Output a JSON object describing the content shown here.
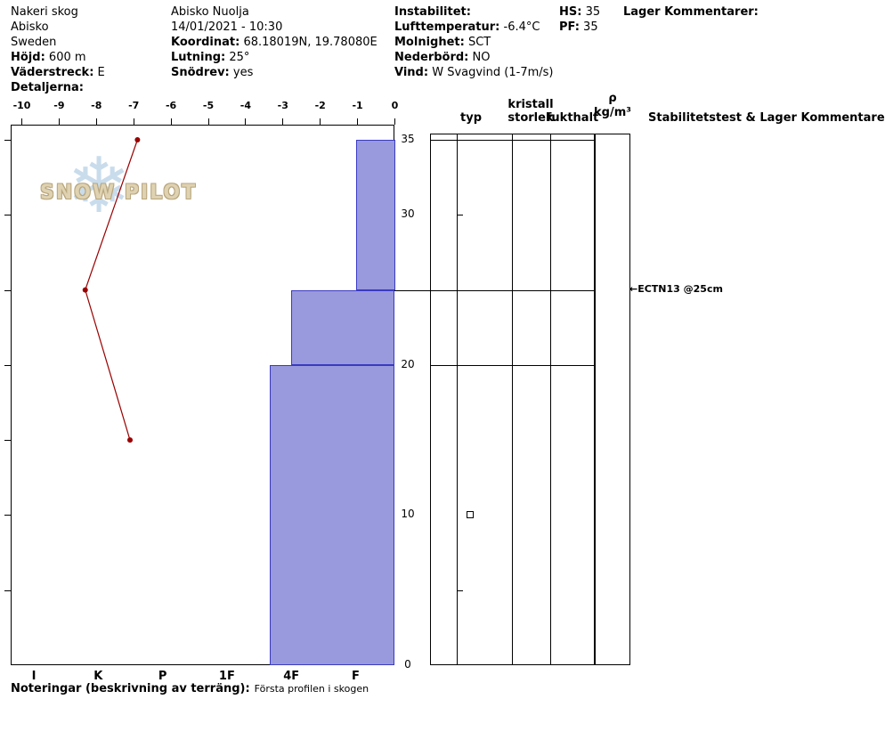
{
  "header": {
    "location": {
      "name": "Nakeri skog",
      "region": "Abisko",
      "country": "Sweden",
      "elevation_label": "Höjd:",
      "elevation_value": "600 m",
      "aspect_label": "Väderstreck:",
      "aspect_value": "E",
      "details_label": "Detaljerna:"
    },
    "site": {
      "name": "Abisko Nuolja",
      "datetime": "14/01/2021 - 10:30",
      "coord_label": "Koordinat:",
      "coord_value": "68.18019N, 19.78080E",
      "slope_label": "Lutning:",
      "slope_value": "25°",
      "snowdrift_label": "Snödrev:",
      "snowdrift_value": "yes"
    },
    "weather": {
      "instability_label": "Instabilitet:",
      "airtemp_label": "Lufttemperatur:",
      "airtemp_value": "-6.4°C",
      "sky_label": "Molnighet:",
      "sky_value": "SCT",
      "precip_label": "Nederbörd:",
      "precip_value": "NO",
      "wind_label": "Vind:",
      "wind_value": "W Svagvind (1-7m/s)"
    },
    "totals": {
      "hs_label": "HS:",
      "hs_value": "35",
      "pf_label": "PF:",
      "pf_value": "35"
    },
    "layer_comments_label": "Lager Kommentarer:"
  },
  "logo": {
    "text": "SNOW PILOT",
    "snowflake": "❄"
  },
  "table": {
    "headers": {
      "typ": "typ",
      "kristall": "kristall",
      "storlek": "storlek",
      "fukthalt": "fukthalt",
      "rho": "ρ",
      "rho_unit": "kg/m³",
      "stability": "Stabilitetstest & Lager Kommentarer"
    },
    "tick_heights_cm": [
      30,
      25,
      20,
      5
    ],
    "grain_symbols": [
      {
        "height_cm": 10,
        "symbol": "square"
      }
    ],
    "stability_tests": [
      {
        "height_cm": 25,
        "arrow": "←",
        "text": "ECTN13 @25cm"
      }
    ]
  },
  "footer": {
    "label": "Noteringar (beskrivning av terräng):",
    "value": "Första profilen i skogen"
  },
  "colors": {
    "bar_fill": "#9999dd",
    "bar_border": "#3a3ac2",
    "temp_line": "#990000",
    "logo_flake": "#c9dcec",
    "logo_text": "#ded2b2"
  },
  "chart_data": [
    {
      "type": "line",
      "name": "temperature_profile",
      "x_ticks": [
        -10,
        -9,
        -8,
        -7,
        -6,
        -5,
        -4,
        -3,
        -2,
        -1,
        0
      ],
      "xlim": [
        -10,
        0
      ],
      "ylim": [
        0,
        35.4
      ],
      "points": [
        {
          "height_cm": 35,
          "temp_c": -6.9
        },
        {
          "height_cm": 25,
          "temp_c": -8.3
        },
        {
          "height_cm": 15,
          "temp_c": -7.1
        }
      ]
    },
    {
      "type": "bar",
      "name": "hardness_profile",
      "orientation": "horizontal",
      "hardness_scale": [
        "I",
        "K",
        "P",
        "1F",
        "4F",
        "F"
      ],
      "height_labels": [
        35,
        30,
        20,
        10,
        0
      ],
      "height_tick_marks": [
        35,
        30,
        25,
        20,
        15,
        10,
        5
      ],
      "layers": [
        {
          "top_cm": 35,
          "bottom_cm": 25,
          "hardness": "F"
        },
        {
          "top_cm": 25,
          "bottom_cm": 20,
          "hardness": "4F"
        },
        {
          "top_cm": 20,
          "bottom_cm": 0,
          "hardness": "4F+"
        }
      ]
    }
  ]
}
